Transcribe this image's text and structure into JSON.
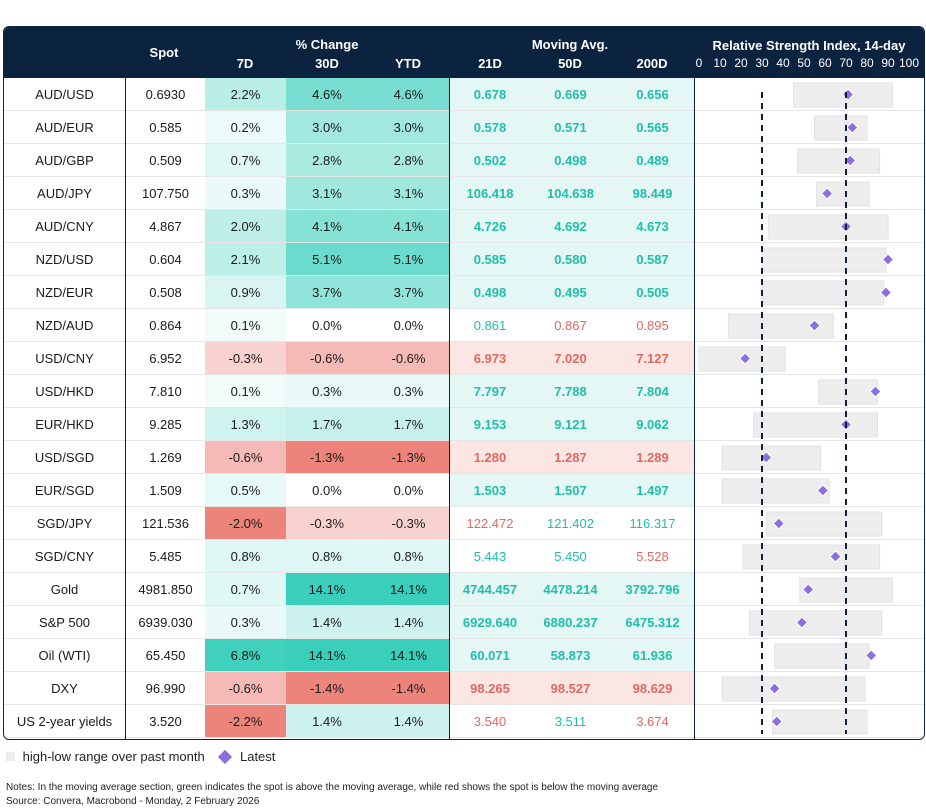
{
  "headers": {
    "spot": "Spot",
    "pct_change": "% Change",
    "moving_avg": "Moving Avg.",
    "rsi": "Relative Strength Index, 14-day",
    "cols": [
      "7D",
      "30D",
      "YTD",
      "21D",
      "50D",
      "200D"
    ],
    "rsi_ticks": [
      "0",
      "10",
      "20",
      "30",
      "40",
      "50",
      "60",
      "70",
      "80",
      "90",
      "100"
    ]
  },
  "colors": {
    "header_bg": "#0c2340",
    "pos_text": "#1fbfa9",
    "neg_text": "#e06a60",
    "marker": "#8b6fe0",
    "range_bar": "#ededed"
  },
  "chart_data": {
    "type": "table",
    "rsi_range": [
      0,
      100
    ],
    "rsi_reference_lines": [
      30,
      70
    ],
    "rows": [
      {
        "name": "AUD/USD",
        "spot": "0.6930",
        "d7": "2.2%",
        "d30": "4.6%",
        "ytd": "4.6%",
        "ma21": "0.678",
        "ma50": "0.669",
        "ma200": "0.656",
        "rsi": 71,
        "low": 45,
        "high": 92
      },
      {
        "name": "AUD/EUR",
        "spot": "0.585",
        "d7": "0.2%",
        "d30": "3.0%",
        "ytd": "3.0%",
        "ma21": "0.578",
        "ma50": "0.571",
        "ma200": "0.565",
        "rsi": 73,
        "low": 55,
        "high": 80
      },
      {
        "name": "AUD/GBP",
        "spot": "0.509",
        "d7": "0.7%",
        "d30": "2.8%",
        "ytd": "2.8%",
        "ma21": "0.502",
        "ma50": "0.498",
        "ma200": "0.489",
        "rsi": 72,
        "low": 47,
        "high": 86
      },
      {
        "name": "AUD/JPY",
        "spot": "107.750",
        "d7": "0.3%",
        "d30": "3.1%",
        "ytd": "3.1%",
        "ma21": "106.418",
        "ma50": "104.638",
        "ma200": "98.449",
        "rsi": 61,
        "low": 56,
        "high": 81
      },
      {
        "name": "AUD/CNY",
        "spot": "4.867",
        "d7": "2.0%",
        "d30": "4.1%",
        "ytd": "4.1%",
        "ma21": "4.726",
        "ma50": "4.692",
        "ma200": "4.673",
        "rsi": 70,
        "low": 33,
        "high": 90
      },
      {
        "name": "NZD/USD",
        "spot": "0.604",
        "d7": "2.1%",
        "d30": "5.1%",
        "ytd": "5.1%",
        "ma21": "0.585",
        "ma50": "0.580",
        "ma200": "0.587",
        "rsi": 90,
        "low": 30,
        "high": 89
      },
      {
        "name": "NZD/EUR",
        "spot": "0.508",
        "d7": "0.9%",
        "d30": "3.7%",
        "ytd": "3.7%",
        "ma21": "0.498",
        "ma50": "0.495",
        "ma200": "0.505",
        "rsi": 89,
        "low": 30,
        "high": 88
      },
      {
        "name": "NZD/AUD",
        "spot": "0.864",
        "d7": "0.1%",
        "d30": "0.0%",
        "ytd": "0.0%",
        "ma21": "0.861",
        "ma50": "0.867",
        "ma200": "0.895",
        "rsi": 55,
        "low": 14,
        "high": 64
      },
      {
        "name": "USD/CNY",
        "spot": "6.952",
        "d7": "-0.3%",
        "d30": "-0.6%",
        "ytd": "-0.6%",
        "ma21": "6.973",
        "ma50": "7.020",
        "ma200": "7.127",
        "rsi": 22,
        "low": 0,
        "high": 41
      },
      {
        "name": "USD/HKD",
        "spot": "7.810",
        "d7": "0.1%",
        "d30": "0.3%",
        "ytd": "0.3%",
        "ma21": "7.797",
        "ma50": "7.788",
        "ma200": "7.804",
        "rsi": 84,
        "low": 57,
        "high": 85
      },
      {
        "name": "EUR/HKD",
        "spot": "9.285",
        "d7": "1.3%",
        "d30": "1.7%",
        "ytd": "1.7%",
        "ma21": "9.153",
        "ma50": "9.121",
        "ma200": "9.062",
        "rsi": 70,
        "low": 26,
        "high": 85
      },
      {
        "name": "USD/SGD",
        "spot": "1.269",
        "d7": "-0.6%",
        "d30": "-1.3%",
        "ytd": "-1.3%",
        "ma21": "1.280",
        "ma50": "1.287",
        "ma200": "1.289",
        "rsi": 32,
        "low": 11,
        "high": 58
      },
      {
        "name": "EUR/SGD",
        "spot": "1.509",
        "d7": "0.5%",
        "d30": "0.0%",
        "ytd": "0.0%",
        "ma21": "1.503",
        "ma50": "1.507",
        "ma200": "1.497",
        "rsi": 59,
        "low": 11,
        "high": 62
      },
      {
        "name": "SGD/JPY",
        "spot": "121.536",
        "d7": "-2.0%",
        "d30": "-0.3%",
        "ytd": "-0.3%",
        "ma21": "122.472",
        "ma50": "121.402",
        "ma200": "116.317",
        "rsi": 38,
        "low": 32,
        "high": 87
      },
      {
        "name": "SGD/CNY",
        "spot": "5.485",
        "d7": "0.8%",
        "d30": "0.8%",
        "ytd": "0.8%",
        "ma21": "5.443",
        "ma50": "5.450",
        "ma200": "5.528",
        "rsi": 65,
        "low": 21,
        "high": 86
      },
      {
        "name": "Gold",
        "spot": "4981.850",
        "d7": "0.7%",
        "d30": "14.1%",
        "ytd": "14.1%",
        "ma21": "4744.457",
        "ma50": "4478.214",
        "ma200": "3792.796",
        "rsi": 52,
        "low": 48,
        "high": 92
      },
      {
        "name": "S&P 500",
        "spot": "6939.030",
        "d7": "0.3%",
        "d30": "1.4%",
        "ytd": "1.4%",
        "ma21": "6929.640",
        "ma50": "6880.237",
        "ma200": "6475.312",
        "rsi": 49,
        "low": 24,
        "high": 87
      },
      {
        "name": "Oil (WTI)",
        "spot": "65.450",
        "d7": "6.8%",
        "d30": "14.1%",
        "ytd": "14.1%",
        "ma21": "60.071",
        "ma50": "58.873",
        "ma200": "61.936",
        "rsi": 82,
        "low": 36,
        "high": 81
      },
      {
        "name": "DXY",
        "spot": "96.990",
        "d7": "-0.6%",
        "d30": "-1.4%",
        "ytd": "-1.4%",
        "ma21": "98.265",
        "ma50": "98.527",
        "ma200": "98.629",
        "rsi": 36,
        "low": 11,
        "high": 79
      },
      {
        "name": "US 2-year yields",
        "spot": "3.520",
        "d7": "-2.2%",
        "d30": "1.4%",
        "ytd": "1.4%",
        "ma21": "3.540",
        "ma50": "3.511",
        "ma200": "3.674",
        "rsi": 37,
        "low": 35,
        "high": 80
      }
    ]
  },
  "legend": {
    "range_label": "high-low range over past month",
    "latest_label": "Latest"
  },
  "notes": {
    "line1": "Notes: In the moving average section, green indicates the spot is above the moving average, while red shows the spot is below the moving average",
    "line2": "Source: Convera, Macrobond - Monday, 2 February 2026"
  }
}
